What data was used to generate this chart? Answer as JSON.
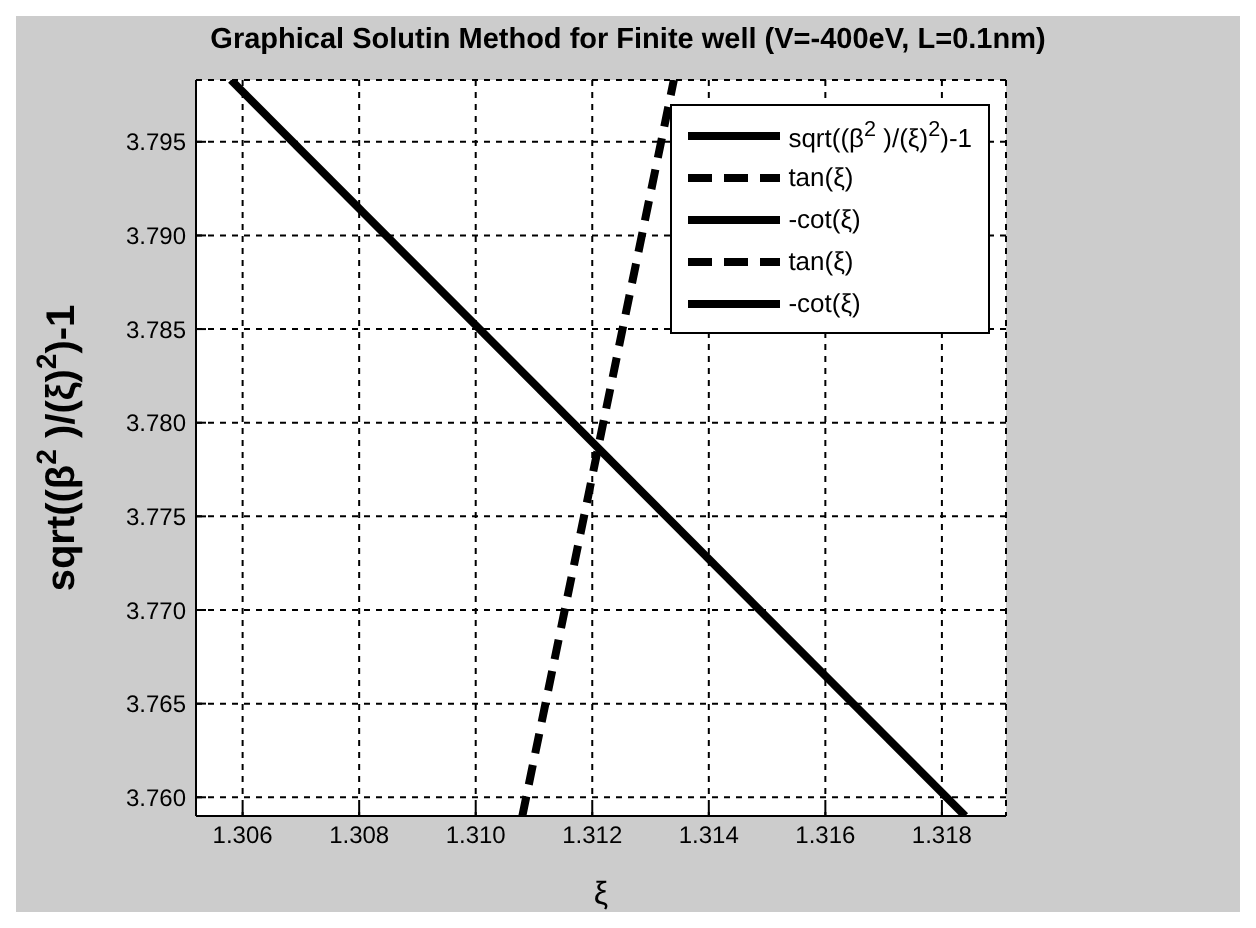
{
  "chart_data": {
    "type": "line",
    "title": "Graphical Solutin Method for Finite well (V=-400eV, L=0.1nm)",
    "xlabel": "ξ",
    "ylabel": "sqrt((β$^{2}$ )/(ξ)$^{2}$)-1",
    "series": [
      {
        "name": "sqrt((β$^{2}$ )/(ξ)$^{2}$)-1",
        "color": "#000000",
        "line_style": "solid",
        "x": [
          1.3058,
          1.3184
        ],
        "values": [
          3.7983,
          3.759
        ]
      },
      {
        "name": "tan(ξ)",
        "color": "#000000",
        "line_style": "dashed",
        "x": [
          1.3108,
          1.3134
        ],
        "values": [
          3.759,
          3.7983
        ]
      },
      {
        "name": "-cot(ξ)",
        "color": "#000000",
        "line_style": "solid"
      },
      {
        "name": "tan(ξ)",
        "color": "#000000",
        "line_style": "dashed"
      },
      {
        "name": "-cot(ξ)",
        "color": "#000000",
        "line_style": "solid"
      }
    ],
    "xlim": [
      1.3052,
      1.3191
    ],
    "xticks": [
      1.306,
      1.308,
      {
        "value": 1.31,
        "label": "1.310"
      },
      1.312,
      1.314,
      1.316,
      1.318
    ],
    "ylim": [
      3.759,
      3.7983
    ],
    "yticks": [
      {
        "value": 3.76,
        "label": "3.760"
      },
      3.765,
      {
        "value": 3.77,
        "label": "3.770"
      },
      3.775,
      {
        "value": 3.78,
        "label": "3.780"
      },
      3.785,
      {
        "value": 3.79,
        "label": "3.790"
      },
      3.795
    ],
    "grid": true,
    "legend": "top right",
    "marker": "none"
  }
}
